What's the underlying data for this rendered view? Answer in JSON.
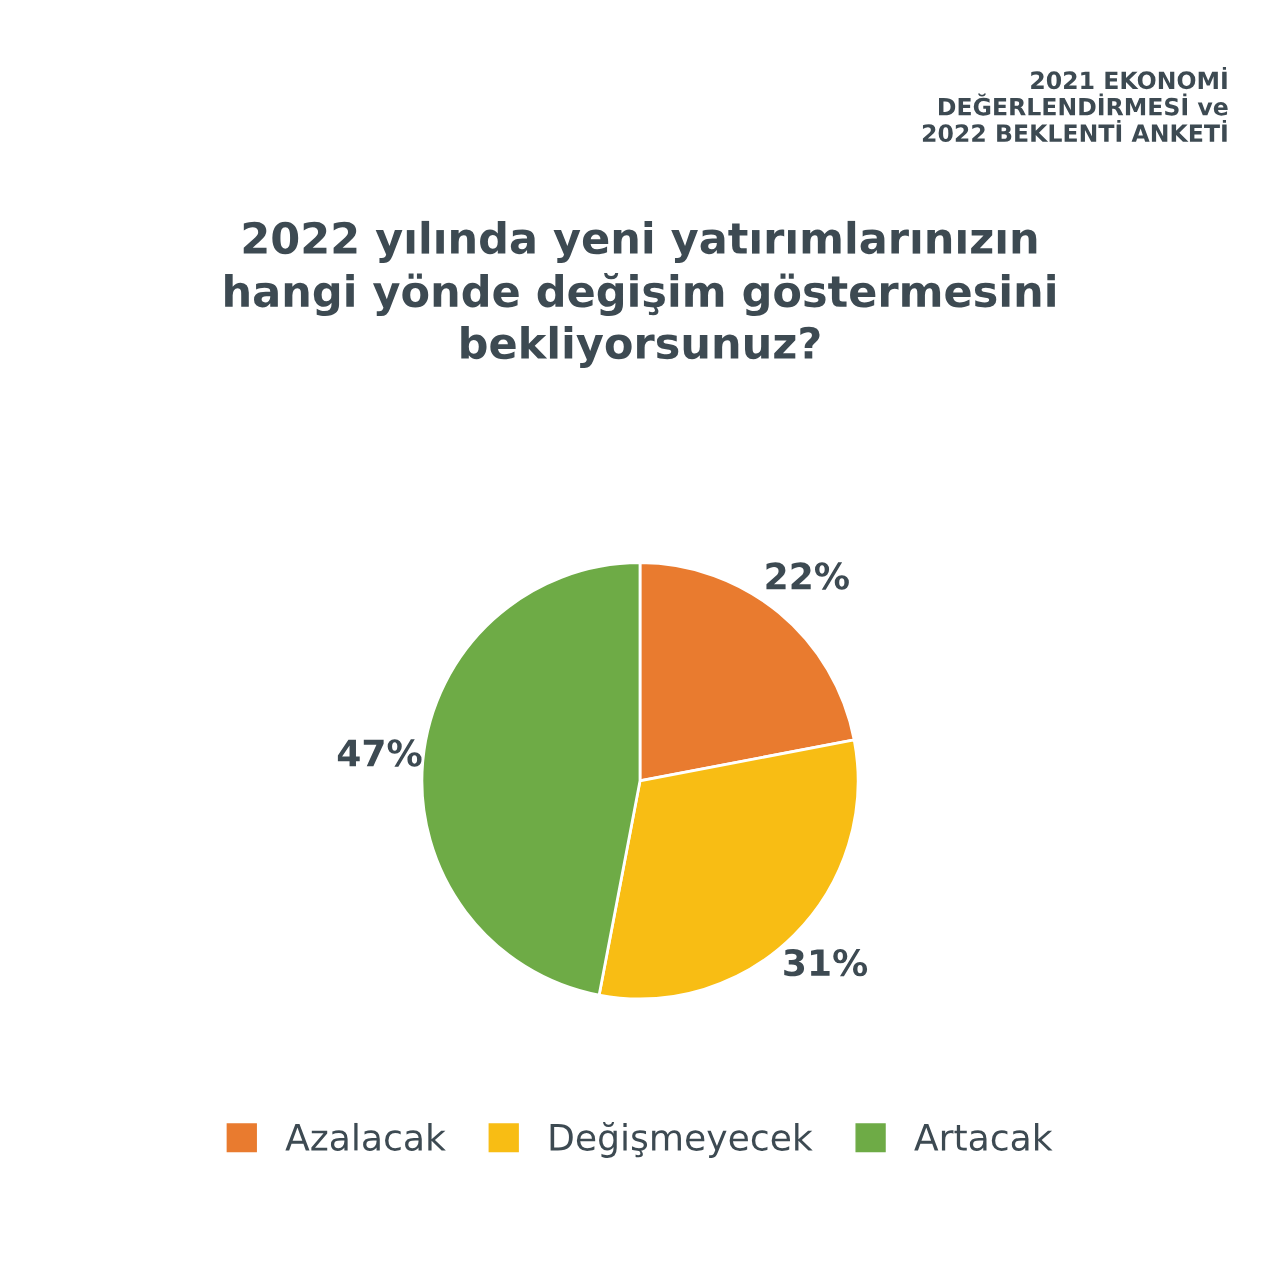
{
  "chart_data": {
    "type": "pie",
    "title": "2022 yılında yeni yatırımlarınızın\nhangi yönde değişim göstermesini\nbekliyorsunuz?",
    "subtitle": "2021 EKONOMİ\nDEĞERLENDİRMESİ ve\n2022 BEKLENTİ ANKETİ",
    "categories": [
      "Azalacak",
      "Değişmeyecek",
      "Artacak"
    ],
    "values": [
      22,
      31,
      47
    ],
    "value_labels": [
      "22%",
      "31%",
      "47%"
    ],
    "colors": [
      "#e97b2f",
      "#f8bd14",
      "#6eab46"
    ],
    "legend": "bottom"
  }
}
